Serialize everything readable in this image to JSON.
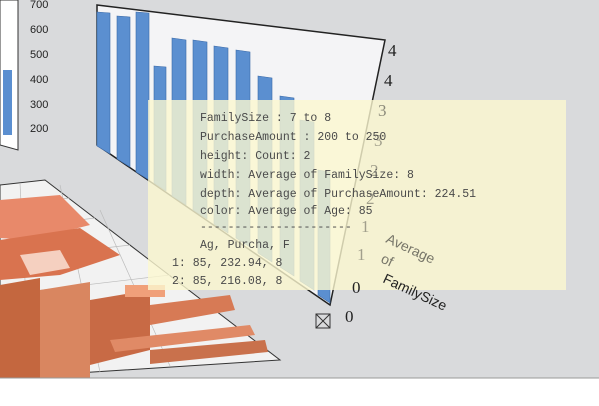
{
  "left_axis": {
    "ticks": [
      "700",
      "600",
      "500",
      "400",
      "300",
      "200"
    ]
  },
  "right_axis": {
    "ticks": [
      "4",
      "4",
      "3",
      "3",
      "2",
      "2",
      "1",
      "1",
      "0",
      "0"
    ],
    "title": [
      "Average",
      "of",
      "FamilySize"
    ]
  },
  "tooltip": {
    "lines": [
      "FamilySize : 7 to 8",
      "PurchaseAmount : 200 to 250",
      "height: Count: 2",
      "width: Average of FamilySize: 8",
      "depth: Average of PurchaseAmount: 224.51",
      "color: Average of Age: 85",
      "----------------------"
    ],
    "table_header": "Ag, Purcha, F",
    "rows": [
      "1: 85, 232.94, 8",
      "2: 85, 216.08, 8"
    ]
  }
}
